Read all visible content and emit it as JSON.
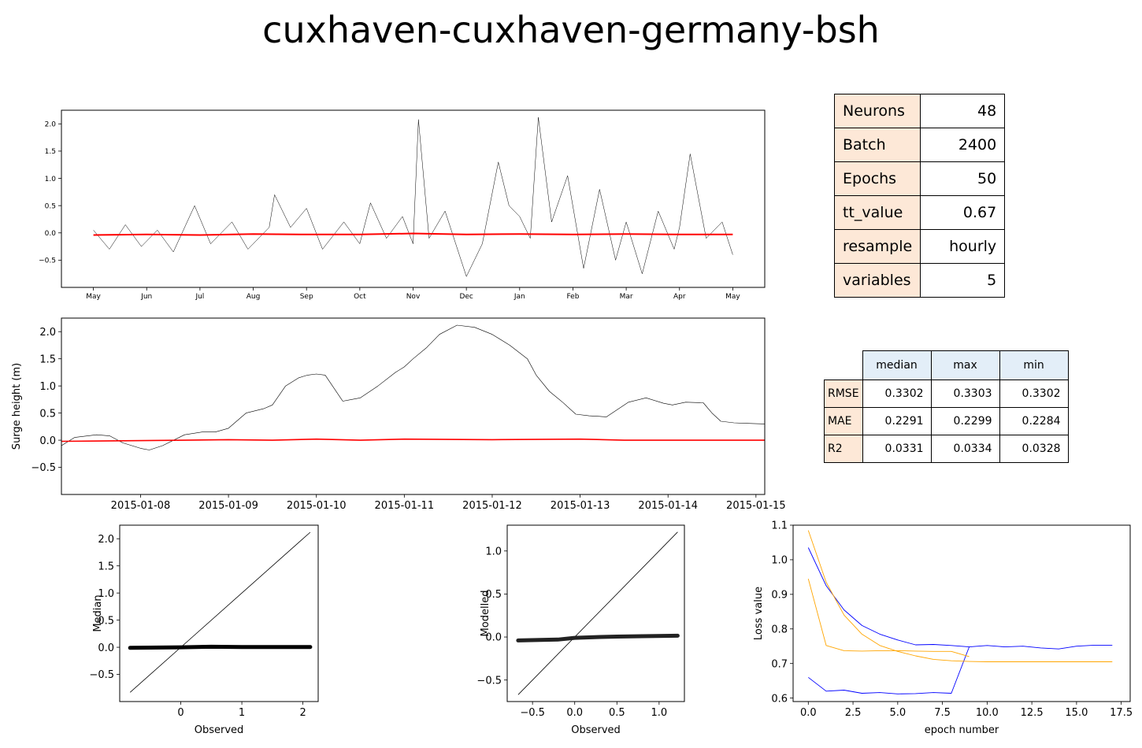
{
  "title": "cuxhaven-cuxhaven-germany-bsh",
  "params_table": {
    "rows": [
      {
        "key": "Neurons",
        "value": "48"
      },
      {
        "key": "Batch",
        "value": "2400"
      },
      {
        "key": "Epochs",
        "value": "50"
      },
      {
        "key": "tt_value",
        "value": "0.67"
      },
      {
        "key": "resample",
        "value": "hourly"
      },
      {
        "key": "variables",
        "value": "5"
      }
    ]
  },
  "metrics_table": {
    "columns": [
      "median",
      "max",
      "min"
    ],
    "rows": [
      {
        "label": "RMSE",
        "values": [
          "0.3302",
          "0.3303",
          "0.3302"
        ]
      },
      {
        "label": "MAE",
        "values": [
          "0.2291",
          "0.2299",
          "0.2284"
        ]
      },
      {
        "label": "R2",
        "values": [
          "0.0331",
          "0.0334",
          "0.0328"
        ]
      }
    ]
  },
  "chart_data": [
    {
      "id": "full_series",
      "type": "line",
      "title": "",
      "xlabel": "",
      "ylabel": "",
      "xlim": [
        -0.6,
        12.6
      ],
      "ylim": [
        -1.0,
        2.25
      ],
      "x_ticks": [
        0,
        1,
        2,
        3,
        4,
        5,
        6,
        7,
        8,
        9,
        10,
        11,
        12
      ],
      "x_tick_labels": [
        "May",
        "Jun",
        "Jul",
        "Aug",
        "Sep",
        "Oct",
        "Nov",
        "Dec",
        "Jan",
        "Feb",
        "Mar",
        "Apr",
        "May"
      ],
      "y_ticks": [
        -0.5,
        0.0,
        0.5,
        1.0,
        1.5,
        2.0
      ],
      "y_tick_labels": [
        "−0.5",
        "0.0",
        "0.5",
        "1.0",
        "1.5",
        "2.0"
      ],
      "series": [
        {
          "color": "#000000",
          "x": [
            0.0,
            0.3,
            0.6,
            0.9,
            1.2,
            1.5,
            1.9,
            2.2,
            2.6,
            2.9,
            3.3,
            3.4,
            3.7,
            4.0,
            4.3,
            4.7,
            5.0,
            5.2,
            5.5,
            5.8,
            6.0,
            6.1,
            6.3,
            6.6,
            6.9,
            7.0,
            7.3,
            7.6,
            7.8,
            8.0,
            8.2,
            8.35,
            8.6,
            8.9,
            9.2,
            9.5,
            9.8,
            10.0,
            10.3,
            10.6,
            10.9,
            11.0,
            11.2,
            11.5,
            11.8,
            12.0
          ],
          "y": [
            0.05,
            -0.3,
            0.15,
            -0.25,
            0.05,
            -0.35,
            0.5,
            -0.2,
            0.2,
            -0.3,
            0.1,
            0.7,
            0.1,
            0.45,
            -0.3,
            0.2,
            -0.2,
            0.55,
            -0.1,
            0.3,
            -0.2,
            2.08,
            -0.1,
            0.4,
            -0.5,
            -0.8,
            -0.2,
            1.3,
            0.5,
            0.3,
            -0.1,
            2.12,
            0.2,
            1.05,
            -0.65,
            0.8,
            -0.5,
            0.2,
            -0.75,
            0.4,
            -0.3,
            0.1,
            1.45,
            -0.1,
            0.2,
            -0.4
          ]
        },
        {
          "color": "#ff0000",
          "x": [
            0.0,
            1.0,
            2.0,
            3.0,
            4.0,
            5.0,
            6.0,
            7.0,
            8.0,
            9.0,
            10.0,
            11.0,
            12.0
          ],
          "y": [
            -0.04,
            -0.03,
            -0.04,
            -0.02,
            -0.03,
            -0.03,
            -0.01,
            -0.03,
            -0.02,
            -0.03,
            -0.02,
            -0.03,
            -0.03
          ]
        }
      ]
    },
    {
      "id": "zoom_series",
      "type": "line",
      "title": "",
      "xlabel": "",
      "ylabel": "Surge height (m)",
      "xlim": [
        -0.9,
        7.1
      ],
      "ylim": [
        -1.0,
        2.25
      ],
      "x_ticks": [
        0,
        1,
        2,
        3,
        4,
        5,
        6,
        7
      ],
      "x_tick_labels": [
        "2015-01-08",
        "2015-01-09",
        "2015-01-10",
        "2015-01-11",
        "2015-01-12",
        "2015-01-13",
        "2015-01-14",
        "2015-01-15"
      ],
      "y_ticks": [
        -0.5,
        0.0,
        0.5,
        1.0,
        1.5,
        2.0
      ],
      "y_tick_labels": [
        "−0.5",
        "0.0",
        "0.5",
        "1.0",
        "1.5",
        "2.0"
      ],
      "series": [
        {
          "color": "#000000",
          "x": [
            -0.9,
            -0.75,
            -0.5,
            -0.35,
            -0.2,
            0.0,
            0.1,
            0.25,
            0.5,
            0.7,
            0.85,
            1.0,
            1.2,
            1.4,
            1.5,
            1.65,
            1.8,
            1.9,
            2.0,
            2.1,
            2.3,
            2.5,
            2.7,
            2.9,
            3.0,
            3.1,
            3.25,
            3.4,
            3.6,
            3.8,
            4.0,
            4.2,
            4.4,
            4.5,
            4.65,
            4.8,
            4.95,
            5.1,
            5.3,
            5.55,
            5.75,
            5.95,
            6.05,
            6.2,
            6.4,
            6.5,
            6.6,
            6.75,
            6.9,
            7.1
          ],
          "y": [
            -0.1,
            0.05,
            0.1,
            0.08,
            -0.05,
            -0.15,
            -0.18,
            -0.1,
            0.1,
            0.15,
            0.15,
            0.22,
            0.5,
            0.58,
            0.65,
            1.0,
            1.15,
            1.2,
            1.22,
            1.2,
            0.72,
            0.78,
            1.0,
            1.25,
            1.35,
            1.5,
            1.7,
            1.95,
            2.12,
            2.08,
            1.95,
            1.75,
            1.5,
            1.2,
            0.9,
            0.7,
            0.48,
            0.45,
            0.43,
            0.7,
            0.78,
            0.68,
            0.65,
            0.7,
            0.69,
            0.5,
            0.35,
            0.32,
            0.31,
            0.3
          ]
        },
        {
          "color": "#ff0000",
          "x": [
            -0.9,
            0.5,
            1.0,
            1.5,
            2.0,
            2.5,
            3.0,
            4.0,
            5.0,
            5.5,
            6.0,
            7.1
          ],
          "y": [
            -0.02,
            0.0,
            0.01,
            0.0,
            0.02,
            0.0,
            0.02,
            0.01,
            0.02,
            0.0,
            0.0,
            0.0
          ]
        }
      ]
    },
    {
      "id": "scatter_median",
      "type": "scatter",
      "title": "",
      "xlabel": "Observed",
      "ylabel": "Median",
      "xlim": [
        -1.0,
        2.25
      ],
      "ylim": [
        -1.0,
        2.25
      ],
      "x_ticks": [
        0,
        1,
        2
      ],
      "x_tick_labels": [
        "0",
        "1",
        "2"
      ],
      "y_ticks": [
        -0.5,
        0.0,
        0.5,
        1.0,
        1.5,
        2.0
      ],
      "y_tick_labels": [
        "−0.5",
        "0.0",
        "0.5",
        "1.0",
        "1.5",
        "2.0"
      ],
      "series": [
        {
          "kind": "line",
          "color": "#000000",
          "x": [
            -0.83,
            2.12
          ],
          "y": [
            -0.83,
            2.12
          ]
        },
        {
          "kind": "band",
          "color": "#000000",
          "x": [
            -0.83,
            0.0,
            0.5,
            1.0,
            2.12
          ],
          "y": [
            -0.01,
            0.0,
            0.01,
            0.005,
            0.005
          ]
        }
      ]
    },
    {
      "id": "scatter_modelled",
      "type": "scatter",
      "title": "",
      "xlabel": "Observed",
      "ylabel": "Modelled",
      "xlim": [
        -0.8,
        1.3
      ],
      "ylim": [
        -0.75,
        1.3
      ],
      "x_ticks": [
        -0.5,
        0.0,
        0.5,
        1.0
      ],
      "x_tick_labels": [
        "−0.5",
        "0.0",
        "0.5",
        "1.0"
      ],
      "y_ticks": [
        -0.5,
        0.0,
        0.5,
        1.0
      ],
      "y_tick_labels": [
        "−0.5",
        "0.0",
        "0.5",
        "1.0"
      ],
      "series": [
        {
          "kind": "line",
          "color": "#000000",
          "x": [
            -0.67,
            1.22
          ],
          "y": [
            -0.67,
            1.22
          ]
        },
        {
          "kind": "band",
          "color": "#222222",
          "x": [
            -0.67,
            -0.2,
            0.0,
            0.3,
            0.5,
            0.8,
            1.22
          ],
          "y": [
            -0.04,
            -0.03,
            -0.01,
            0.0,
            0.005,
            0.01,
            0.015
          ]
        }
      ]
    },
    {
      "id": "loss_curves",
      "type": "line",
      "title": "",
      "xlabel": "epoch number",
      "ylabel": "Loss value",
      "xlim": [
        -0.85,
        18.0
      ],
      "ylim": [
        0.59,
        1.1
      ],
      "x_ticks": [
        0,
        2.5,
        5,
        7.5,
        10,
        12.5,
        15,
        17.5
      ],
      "x_tick_labels": [
        "0.0",
        "2.5",
        "5.0",
        "7.5",
        "10.0",
        "12.5",
        "15.0",
        "17.5"
      ],
      "y_ticks": [
        0.6,
        0.7,
        0.8,
        0.9,
        1.0,
        1.1
      ],
      "y_tick_labels": [
        "0.6",
        "0.7",
        "0.8",
        "0.9",
        "1.0",
        "1.1"
      ],
      "series": [
        {
          "color": "#0000ff",
          "x": [
            0,
            1,
            2,
            3,
            4,
            5,
            6,
            7,
            8,
            9,
            10,
            11,
            12,
            13,
            14,
            15,
            16,
            17
          ],
          "y": [
            1.035,
            0.925,
            0.855,
            0.81,
            0.785,
            0.768,
            0.754,
            0.755,
            0.752,
            0.748,
            0.752,
            0.748,
            0.75,
            0.745,
            0.742,
            0.75,
            0.753,
            0.753
          ]
        },
        {
          "color": "#0000ff",
          "x": [
            0,
            1,
            2,
            3,
            4,
            5,
            6,
            7,
            8,
            9
          ],
          "y": [
            0.66,
            0.62,
            0.623,
            0.614,
            0.616,
            0.612,
            0.613,
            0.616,
            0.614,
            0.748
          ]
        },
        {
          "color": "#ffa500",
          "x": [
            0,
            1,
            2,
            3,
            4,
            5,
            6,
            7,
            8,
            9,
            10,
            11,
            12,
            13,
            14,
            15,
            16,
            17
          ],
          "y": [
            1.085,
            0.935,
            0.84,
            0.785,
            0.752,
            0.735,
            0.722,
            0.712,
            0.708,
            0.706,
            0.705,
            0.705,
            0.705,
            0.705,
            0.705,
            0.705,
            0.705,
            0.705
          ]
        },
        {
          "color": "#ffa500",
          "x": [
            0,
            1,
            2,
            3,
            4,
            5,
            6,
            7,
            8,
            9
          ],
          "y": [
            0.945,
            0.752,
            0.737,
            0.736,
            0.737,
            0.737,
            0.736,
            0.735,
            0.735,
            0.72
          ]
        }
      ]
    }
  ]
}
